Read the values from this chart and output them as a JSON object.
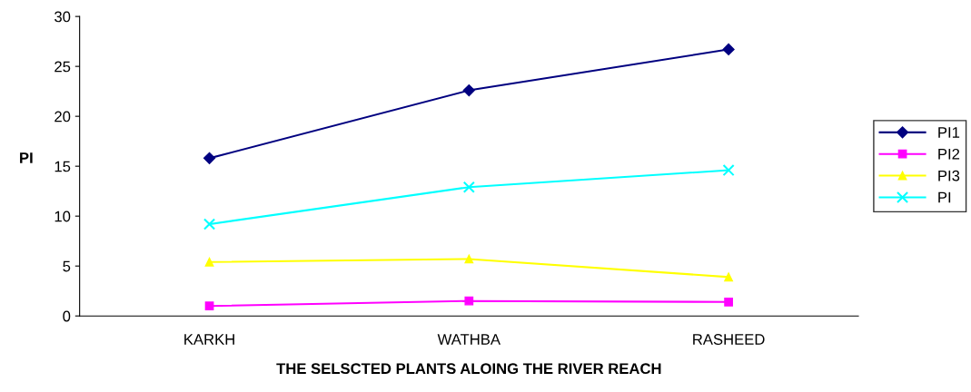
{
  "chart_data": {
    "type": "line",
    "xlabel": "THE SELSCTED PLANTS ALOING THE RIVER REACH",
    "ylabel": "PI",
    "categories": [
      "KARKH",
      "WATHBA",
      "RASHEED"
    ],
    "series": [
      {
        "name": "PI1",
        "color": "#000080",
        "marker": "diamond",
        "values": [
          15.8,
          22.6,
          26.7
        ]
      },
      {
        "name": "PI2",
        "color": "#ff00ff",
        "marker": "square",
        "values": [
          1.0,
          1.5,
          1.4
        ]
      },
      {
        "name": "PI3",
        "color": "#ffff00",
        "marker": "triangle",
        "values": [
          5.4,
          5.7,
          3.9
        ]
      },
      {
        "name": "PI",
        "color": "#00ffff",
        "marker": "cross",
        "values": [
          9.2,
          12.9,
          14.6
        ]
      }
    ],
    "ylim": [
      0,
      30
    ],
    "yticks": [
      0,
      5,
      10,
      15,
      20,
      25,
      30
    ],
    "grid": false,
    "legend": "right"
  }
}
